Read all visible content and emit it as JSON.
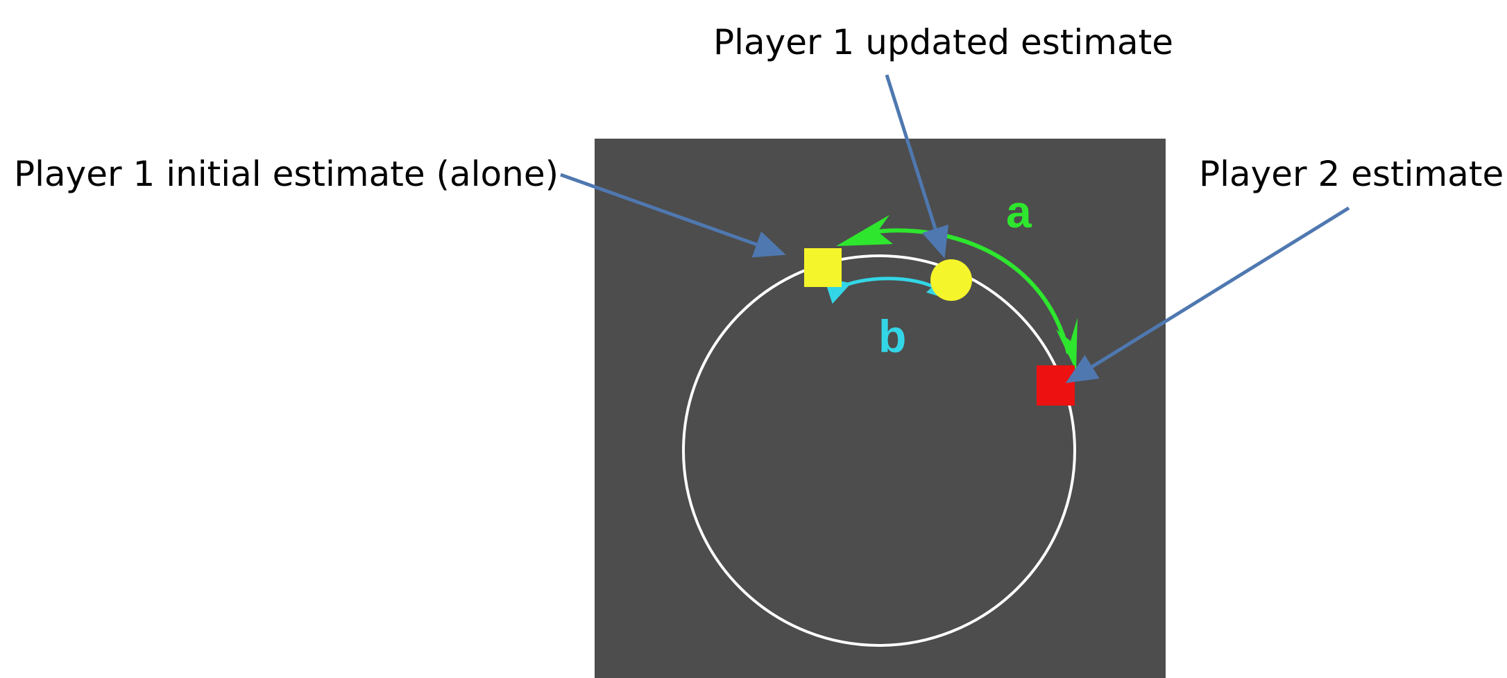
{
  "labels": {
    "player1_initial": "Player 1 initial estimate (alone)",
    "player1_updated": "Player 1 updated estimate",
    "player2": "Player 2 estimate",
    "arc_a": "a",
    "arc_b": "b"
  },
  "colors": {
    "panel": "#4d4d4d",
    "ring": "#ffffff",
    "player1_marker": "#f5f52b",
    "player2_marker": "#ee1111",
    "arc_a": "#2ee62e",
    "arc_b": "#33d6e6",
    "callout_arrow": "#4f78b0",
    "text": "#000000"
  },
  "markers": {
    "player1_initial": {
      "shape": "square"
    },
    "player1_updated": {
      "shape": "circle"
    },
    "player2": {
      "shape": "square"
    }
  }
}
